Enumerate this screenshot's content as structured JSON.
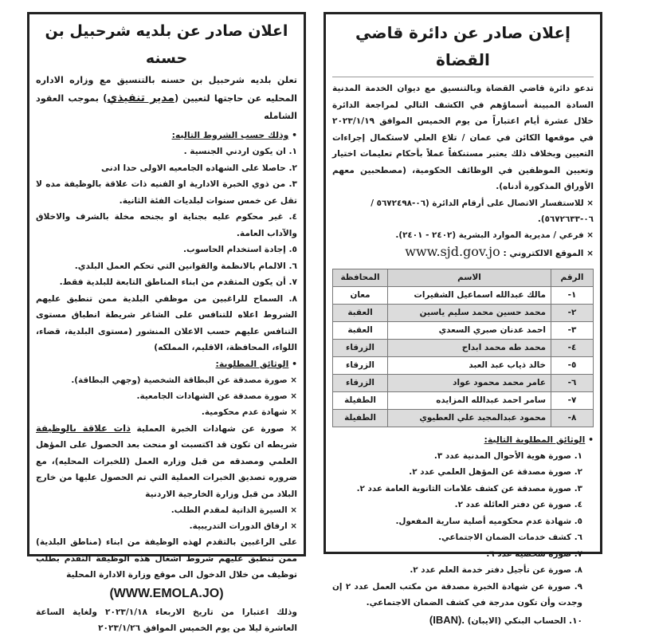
{
  "right_ad": {
    "title": "إعلان صادر عن دائرة قاضي القضاة",
    "intro": "تدعو دائرة قاضي القضاة وبالتنسيق مع ديوان الخدمة المدنية السادة المبينة أسماؤهم في الكشف التالي لمراجعة الدائرة خلال عشرة أيام اعتباراً من يوم الخميس الموافق ٢٠٢٣/١/١٩ في موقعها الكائن في عمان / تلاع العلي لاستكمال إجراءات التعيين وبخلاف ذلك يعتبر مستنكفاً عملاً بأحكام تعليمات اختيار وتعيين الموظفين في الوظائف الحكومية، (مصطحبين معهم الأوراق المذكورة أدناه).",
    "contact": "× للاستفسار الاتصال على أرقام الدائرة (٠٦-٥٦٧٢٤٩٨ / ٠٦-٥٦٧٢٦٣٣).",
    "branch": "× فرعي / مديرية الموارد البشرية (٢٤٠٢ - ٢٤٠١).",
    "website_label": "× الموقع الالكتروني :",
    "website_url": "www.sjd.gov.jo",
    "table": {
      "headers": [
        "الرقم",
        "الاسم",
        "المحافظة"
      ],
      "rows": [
        {
          "num": "١-",
          "name": "مالك عبدالله اسماعيل الشقيرات",
          "gov": "معان"
        },
        {
          "num": "٢-",
          "name": "محمد حسين محمد سليم ياسين",
          "gov": "العقبة"
        },
        {
          "num": "٣-",
          "name": "احمد عدنان صبري السعدي",
          "gov": "العقبة"
        },
        {
          "num": "٤-",
          "name": "محمد طه محمد ابداح",
          "gov": "الزرقاء"
        },
        {
          "num": "٥-",
          "name": "خالد ذياب عبد العبد",
          "gov": "الزرقاء"
        },
        {
          "num": "٦-",
          "name": "عامر محمد محمود عواد",
          "gov": "الزرقاء"
        },
        {
          "num": "٧-",
          "name": "سامر احمد عبدالله المزايده",
          "gov": "الطفيلة"
        },
        {
          "num": "٨-",
          "name": "محمود عبدالمجيد علي العطيوي",
          "gov": "الطفيلة"
        }
      ]
    },
    "docs_heading": "الوثائق المطلوبة التالية:",
    "docs": [
      "١. صورة هوية الأحوال المدنية عدد ٣.",
      "٢. صورة مصدقة عن المؤهل العلمي عدد ٢.",
      "٣. صورة مصدقة عن كشف علامات الثانوية العامة عدد ٢.",
      "٤. صورة عن دفتر العائلة عدد ٢.",
      "٥. شهادة عدم محكوميه أصلية سارية المفعول.",
      "٦. كشف خدمات الضمان الاجتماعي.",
      "٧. صورة شخصية عدد ٦.",
      "٨. صورة عن تأجيل دفتر خدمة العلم عدد ٢.",
      "٩. صورة عن شهادة الخبرة مصدقة من مكتب العمل عدد ٢ إن وجدت وأن تكون مدرجة في كشف الضمان الاجتماعي."
    ],
    "doc10_prefix": "١٠. الحساب البنكي (الايبان)",
    "doc10_iban": "(IBAN)."
  },
  "left_ad": {
    "title": "اعلان صادر عن بلديه شرحبيل بن حسنه",
    "intro_a": "تعلن بلديه شرحبيل بن حسنه بالتنسيق مع وزاره الاداره المحليه عن حاجتها لتعيين (",
    "job_title": "مدير تنفيذي",
    "intro_b": ") بموجب العقود الشامله",
    "conditions_heading": "وذلك حسب الشروط التاليه:",
    "conditions": [
      "١. ان يكون اردني الجنسية .",
      "٢. حاصلا على الشهاده الجامعيه الاولى حدا ادنى",
      "٣. من ذوي الخبرة الادارية او الفنيه ذات علاقة بالوظيفة مده لا تقل عن خمس سنوات لبلديات الفئة الثانية.",
      "٤. غير محكوم عليه بجناية او بجنحه مخلة بالشرف والاخلاق والآداب العامة.",
      "٥. إجادة استخدام الحاسوب.",
      "٦. الالمام بالانظمة والقوانين التي تحكم العمل البلدي.",
      "٧. أن يكون المتقدم من ابناء المناطق التابعة للبلدية فقط.",
      "٨. السماح للراغبين من موظفي البلدية ممن تنطبق عليهم الشروط اعلاه للتنافس على الشاغر شريطة انطباق مستوى التنافس عليهم حسب الاعلان المنشور (مستوى البلدية، قضاء، اللواء، المحافظة، الاقليم، المملكه)"
    ],
    "docs_heading": "الوثائق المطلوبة:",
    "docs": [
      "× صورة مصدقة عن البطاقة الشخصية (وجهي البطاقة).",
      "× صورة مصدقة عن الشهادات الجامعية.",
      "× شهادة عدم محكومية."
    ],
    "experience_a": "× صورة عن شهادات الخبرة العملية",
    "experience_hl": "ذات علاقة بالوظيفة",
    "experience_b": "شريطه ان تكون قد اكتسبت او منحت بعد الحصول على المؤهل العلمي ومصدقه من قبل وزاره العمل (للخبرات المحليه)، مع ضروره تصديق الخبرات العملية التي تم الحصول عليها من خارج البلاد من قبل وزارة الخارجية الاردنية",
    "docs2": [
      "× السيرة الذاتية لمقدم الطلب.",
      "× ارفاق الدورات التدريبية."
    ],
    "apply_text": "على الراغبين بالتقدم لهذه الوظيفة من ابناء (مناطق البلدية) ممن تنطبق عليهم شروط اشغال هذه الوظيفة التقدم بطلب توظيف من خلال الدخول الى موقع وزارة الادارة المحلية",
    "website": "(WWW.EMOLA.JO)",
    "dates": "وذلك اعتبارا من تاريخ الاربعاء ٢٠٢٣/١/١٨ ولغاية الساعة العاشرة ليلا من يوم الخميس الموافق ٢٠٢٣/١/٢٦"
  }
}
